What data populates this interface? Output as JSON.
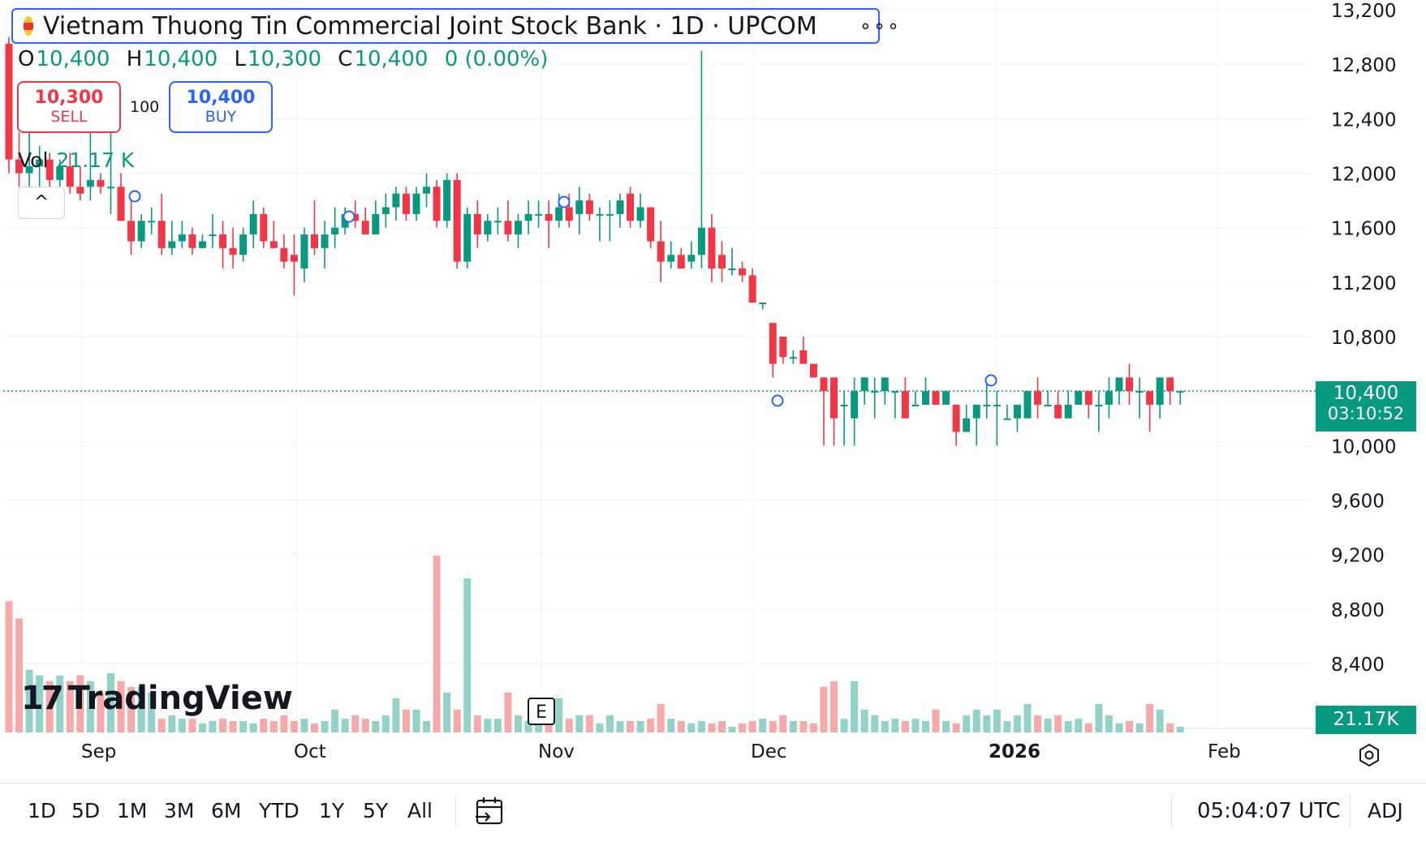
{
  "header": {
    "title": "Vietnam Thuong Tin Commercial Joint Stock Bank · 1D · UPCOM",
    "more_label": "∘∘∘"
  },
  "ohlc": {
    "o_key": "O",
    "o": "10,400",
    "h_key": "H",
    "h": "10,400",
    "l_key": "L",
    "l": "10,300",
    "c_key": "C",
    "c": "10,400",
    "change": "0 (0.00%)"
  },
  "trade": {
    "sell_price": "10,300",
    "sell_label": "SELL",
    "quantity": "100",
    "buy_price": "10,400",
    "buy_label": "BUY"
  },
  "volume_pane": {
    "label": "Vol",
    "value": "21.17 K"
  },
  "collapse_label": "^",
  "watermark": "TradingView",
  "event_marker": "E",
  "price_axis": {
    "ticks": [
      "13,200",
      "12,800",
      "12,400",
      "12,000",
      "11,600",
      "11,200",
      "10,800",
      "10,400",
      "10,000",
      "9,600",
      "9,200",
      "8,800",
      "8,400"
    ],
    "current_price": "10,400",
    "countdown": "03:10:52",
    "volume_tag": "21.17K"
  },
  "time_axis": {
    "labels": [
      "Sep",
      "Oct",
      "Nov",
      "Dec",
      "2026",
      "Feb"
    ]
  },
  "ranges": [
    "1D",
    "5D",
    "1M",
    "3M",
    "6M",
    "YTD",
    "1Y",
    "5Y",
    "All"
  ],
  "clock": "05:04:07 UTC",
  "adj_label": "ADJ",
  "colors": {
    "up": "#089981",
    "down": "#f23645",
    "up_vol": "#92d2c8",
    "down_vol": "#f7a9a7",
    "accent": "#2962ff"
  },
  "chart_data": {
    "type": "candlestick",
    "ylim": [
      8200,
      13300
    ],
    "current_price": 10400,
    "candles": [
      {
        "o": 12950,
        "h": 13000,
        "l": 12000,
        "c": 12100,
        "v": 115
      },
      {
        "o": 12100,
        "h": 12300,
        "l": 11900,
        "c": 12000,
        "v": 100
      },
      {
        "o": 12000,
        "h": 12400,
        "l": 11800,
        "c": 12050,
        "v": 55
      },
      {
        "o": 12050,
        "h": 12200,
        "l": 11900,
        "c": 12100,
        "v": 50
      },
      {
        "o": 12100,
        "h": 12150,
        "l": 11850,
        "c": 11950,
        "v": 45
      },
      {
        "o": 11950,
        "h": 12100,
        "l": 11900,
        "c": 12050,
        "v": 50
      },
      {
        "o": 12050,
        "h": 12150,
        "l": 11850,
        "c": 11900,
        "v": 45
      },
      {
        "o": 11900,
        "h": 12050,
        "l": 11800,
        "c": 11850,
        "v": 50
      },
      {
        "o": 11900,
        "h": 12300,
        "l": 11800,
        "c": 11950,
        "v": 45
      },
      {
        "o": 11950,
        "h": 12000,
        "l": 11850,
        "c": 11900,
        "v": 35
      },
      {
        "o": 11900,
        "h": 12400,
        "l": 11700,
        "c": 11900,
        "v": 52
      },
      {
        "o": 11900,
        "h": 12000,
        "l": 11650,
        "c": 11650,
        "v": 45
      },
      {
        "o": 11650,
        "h": 11800,
        "l": 11400,
        "c": 11500,
        "v": 40
      },
      {
        "o": 11500,
        "h": 11700,
        "l": 11450,
        "c": 11650,
        "v": 40
      },
      {
        "o": 11650,
        "h": 11750,
        "l": 11550,
        "c": 11650,
        "v": 35
      },
      {
        "o": 11650,
        "h": 11850,
        "l": 11400,
        "c": 11450,
        "v": 12
      },
      {
        "o": 11450,
        "h": 11650,
        "l": 11400,
        "c": 11500,
        "v": 15
      },
      {
        "o": 11500,
        "h": 11650,
        "l": 11450,
        "c": 11550,
        "v": 12
      },
      {
        "o": 11550,
        "h": 11600,
        "l": 11400,
        "c": 11450,
        "v": 12
      },
      {
        "o": 11450,
        "h": 11550,
        "l": 11450,
        "c": 11500,
        "v": 8
      },
      {
        "o": 11550,
        "h": 11700,
        "l": 11450,
        "c": 11550,
        "v": 10
      },
      {
        "o": 11550,
        "h": 11650,
        "l": 11300,
        "c": 11450,
        "v": 12
      },
      {
        "o": 11450,
        "h": 11600,
        "l": 11300,
        "c": 11400,
        "v": 10
      },
      {
        "o": 11400,
        "h": 11600,
        "l": 11350,
        "c": 11550,
        "v": 10
      },
      {
        "o": 11550,
        "h": 11800,
        "l": 11450,
        "c": 11700,
        "v": 8
      },
      {
        "o": 11700,
        "h": 11750,
        "l": 11450,
        "c": 11500,
        "v": 12
      },
      {
        "o": 11500,
        "h": 11650,
        "l": 11450,
        "c": 11450,
        "v": 10
      },
      {
        "o": 11450,
        "h": 11550,
        "l": 11300,
        "c": 11350,
        "v": 15
      },
      {
        "o": 11400,
        "h": 11550,
        "l": 11100,
        "c": 11350,
        "v": 10
      },
      {
        "o": 11300,
        "h": 11600,
        "l": 11200,
        "c": 11550,
        "v": 12
      },
      {
        "o": 11550,
        "h": 11800,
        "l": 11400,
        "c": 11450,
        "v": 8
      },
      {
        "o": 11450,
        "h": 11650,
        "l": 11300,
        "c": 11550,
        "v": 10
      },
      {
        "o": 11550,
        "h": 11750,
        "l": 11450,
        "c": 11600,
        "v": 20
      },
      {
        "o": 11600,
        "h": 11750,
        "l": 11550,
        "c": 11700,
        "v": 12
      },
      {
        "o": 11700,
        "h": 11800,
        "l": 11600,
        "c": 11650,
        "v": 15
      },
      {
        "o": 11650,
        "h": 11750,
        "l": 11550,
        "c": 11550,
        "v": 12
      },
      {
        "o": 11550,
        "h": 11800,
        "l": 11550,
        "c": 11700,
        "v": 10
      },
      {
        "o": 11700,
        "h": 11850,
        "l": 11600,
        "c": 11750,
        "v": 15
      },
      {
        "o": 11750,
        "h": 11900,
        "l": 11650,
        "c": 11850,
        "v": 30
      },
      {
        "o": 11850,
        "h": 11900,
        "l": 11650,
        "c": 11700,
        "v": 20
      },
      {
        "o": 11700,
        "h": 11900,
        "l": 11650,
        "c": 11850,
        "v": 20
      },
      {
        "o": 11850,
        "h": 12000,
        "l": 11750,
        "c": 11900,
        "v": 10
      },
      {
        "o": 11900,
        "h": 11950,
        "l": 11600,
        "c": 11650,
        "v": 155
      },
      {
        "o": 11650,
        "h": 12000,
        "l": 11600,
        "c": 11950,
        "v": 35
      },
      {
        "o": 11950,
        "h": 12000,
        "l": 11300,
        "c": 11350,
        "v": 20
      },
      {
        "o": 11350,
        "h": 11750,
        "l": 11300,
        "c": 11700,
        "v": 135
      },
      {
        "o": 11700,
        "h": 11800,
        "l": 11450,
        "c": 11550,
        "v": 15
      },
      {
        "o": 11550,
        "h": 11700,
        "l": 11500,
        "c": 11650,
        "v": 12
      },
      {
        "o": 11650,
        "h": 11750,
        "l": 11550,
        "c": 11650,
        "v": 12
      },
      {
        "o": 11650,
        "h": 11800,
        "l": 11500,
        "c": 11550,
        "v": 35
      },
      {
        "o": 11550,
        "h": 11700,
        "l": 11450,
        "c": 11650,
        "v": 15
      },
      {
        "o": 11650,
        "h": 11800,
        "l": 11550,
        "c": 11700,
        "v": 10
      },
      {
        "o": 11700,
        "h": 11800,
        "l": 11600,
        "c": 11700,
        "v": 12
      },
      {
        "o": 11700,
        "h": 11800,
        "l": 11450,
        "c": 11650,
        "v": 15
      },
      {
        "o": 11650,
        "h": 11850,
        "l": 11600,
        "c": 11750,
        "v": 30
      },
      {
        "o": 11750,
        "h": 11850,
        "l": 11600,
        "c": 11650,
        "v": 12
      },
      {
        "o": 11700,
        "h": 11900,
        "l": 11550,
        "c": 11800,
        "v": 15
      },
      {
        "o": 11800,
        "h": 11850,
        "l": 11650,
        "c": 11700,
        "v": 15
      },
      {
        "o": 11700,
        "h": 11750,
        "l": 11500,
        "c": 11700,
        "v": 8
      },
      {
        "o": 11700,
        "h": 11800,
        "l": 11500,
        "c": 11700,
        "v": 15
      },
      {
        "o": 11700,
        "h": 11850,
        "l": 11600,
        "c": 11800,
        "v": 10
      },
      {
        "o": 11850,
        "h": 11900,
        "l": 11600,
        "c": 11650,
        "v": 10
      },
      {
        "o": 11650,
        "h": 11850,
        "l": 11600,
        "c": 11750,
        "v": 10
      },
      {
        "o": 11750,
        "h": 11750,
        "l": 11450,
        "c": 11500,
        "v": 12
      },
      {
        "o": 11500,
        "h": 11650,
        "l": 11200,
        "c": 11350,
        "v": 25
      },
      {
        "o": 11350,
        "h": 11500,
        "l": 11300,
        "c": 11400,
        "v": 12
      },
      {
        "o": 11400,
        "h": 11450,
        "l": 11300,
        "c": 11300,
        "v": 10
      },
      {
        "o": 11350,
        "h": 11500,
        "l": 11300,
        "c": 11400,
        "v": 8
      },
      {
        "o": 11400,
        "h": 12900,
        "l": 11300,
        "c": 11600,
        "v": 10
      },
      {
        "o": 11600,
        "h": 11700,
        "l": 11200,
        "c": 11300,
        "v": 8
      },
      {
        "o": 11400,
        "h": 11500,
        "l": 11200,
        "c": 11300,
        "v": 10
      },
      {
        "o": 11300,
        "h": 11450,
        "l": 11250,
        "c": 11300,
        "v": 5
      },
      {
        "o": 11300,
        "h": 11350,
        "l": 11200,
        "c": 11250,
        "v": 8
      },
      {
        "o": 11250,
        "h": 11300,
        "l": 11050,
        "c": 11050,
        "v": 10
      },
      {
        "o": 11050,
        "h": 11050,
        "l": 11000,
        "c": 11050,
        "v": 12
      },
      {
        "o": 10900,
        "h": 10900,
        "l": 10500,
        "c": 10600,
        "v": 10
      },
      {
        "o": 10800,
        "h": 10800,
        "l": 10600,
        "c": 10650,
        "v": 15
      },
      {
        "o": 10650,
        "h": 10700,
        "l": 10600,
        "c": 10650,
        "v": 10
      },
      {
        "o": 10700,
        "h": 10800,
        "l": 10600,
        "c": 10600,
        "v": 10
      },
      {
        "o": 10600,
        "h": 10600,
        "l": 10500,
        "c": 10500,
        "v": 8
      },
      {
        "o": 10500,
        "h": 10500,
        "l": 10000,
        "c": 10400,
        "v": 40
      },
      {
        "o": 10500,
        "h": 10500,
        "l": 10000,
        "c": 10200,
        "v": 45
      },
      {
        "o": 10300,
        "h": 10400,
        "l": 10000,
        "c": 10300,
        "v": 12
      },
      {
        "o": 10200,
        "h": 10500,
        "l": 10000,
        "c": 10400,
        "v": 45
      },
      {
        "o": 10400,
        "h": 10500,
        "l": 10300,
        "c": 10500,
        "v": 20
      },
      {
        "o": 10400,
        "h": 10500,
        "l": 10200,
        "c": 10400,
        "v": 15
      },
      {
        "o": 10400,
        "h": 10500,
        "l": 10300,
        "c": 10500,
        "v": 10
      },
      {
        "o": 10400,
        "h": 10400,
        "l": 10200,
        "c": 10400,
        "v": 12
      },
      {
        "o": 10400,
        "h": 10500,
        "l": 10200,
        "c": 10200,
        "v": 10
      },
      {
        "o": 10300,
        "h": 10400,
        "l": 10300,
        "c": 10300,
        "v": 12
      },
      {
        "o": 10300,
        "h": 10500,
        "l": 10300,
        "c": 10400,
        "v": 10
      },
      {
        "o": 10400,
        "h": 10400,
        "l": 10300,
        "c": 10300,
        "v": 20
      },
      {
        "o": 10300,
        "h": 10400,
        "l": 10300,
        "c": 10400,
        "v": 10
      },
      {
        "o": 10300,
        "h": 10300,
        "l": 10000,
        "c": 10100,
        "v": 8
      },
      {
        "o": 10100,
        "h": 10300,
        "l": 10100,
        "c": 10200,
        "v": 15
      },
      {
        "o": 10200,
        "h": 10300,
        "l": 10000,
        "c": 10300,
        "v": 20
      },
      {
        "o": 10300,
        "h": 10500,
        "l": 10200,
        "c": 10300,
        "v": 15
      },
      {
        "o": 10300,
        "h": 10400,
        "l": 10000,
        "c": 10300,
        "v": 20
      },
      {
        "o": 10200,
        "h": 10300,
        "l": 10200,
        "c": 10200,
        "v": 10
      },
      {
        "o": 10200,
        "h": 10300,
        "l": 10100,
        "c": 10300,
        "v": 15
      },
      {
        "o": 10200,
        "h": 10400,
        "l": 10200,
        "c": 10400,
        "v": 25
      },
      {
        "o": 10400,
        "h": 10500,
        "l": 10200,
        "c": 10300,
        "v": 15
      },
      {
        "o": 10300,
        "h": 10400,
        "l": 10300,
        "c": 10300,
        "v": 12
      },
      {
        "o": 10300,
        "h": 10400,
        "l": 10200,
        "c": 10200,
        "v": 15
      },
      {
        "o": 10200,
        "h": 10400,
        "l": 10200,
        "c": 10300,
        "v": 10
      },
      {
        "o": 10300,
        "h": 10400,
        "l": 10300,
        "c": 10400,
        "v": 12
      },
      {
        "o": 10400,
        "h": 10400,
        "l": 10200,
        "c": 10300,
        "v": 8
      },
      {
        "o": 10300,
        "h": 10400,
        "l": 10100,
        "c": 10300,
        "v": 25
      },
      {
        "o": 10300,
        "h": 10500,
        "l": 10200,
        "c": 10400,
        "v": 15
      },
      {
        "o": 10400,
        "h": 10500,
        "l": 10300,
        "c": 10500,
        "v": 8
      },
      {
        "o": 10500,
        "h": 10600,
        "l": 10300,
        "c": 10400,
        "v": 10
      },
      {
        "o": 10400,
        "h": 10500,
        "l": 10200,
        "c": 10400,
        "v": 8
      },
      {
        "o": 10400,
        "h": 10400,
        "l": 10100,
        "c": 10300,
        "v": 25
      },
      {
        "o": 10300,
        "h": 10500,
        "l": 10200,
        "c": 10500,
        "v": 20
      },
      {
        "o": 10500,
        "h": 10500,
        "l": 10300,
        "c": 10400,
        "v": 8
      },
      {
        "o": 10400,
        "h": 10400,
        "l": 10300,
        "c": 10400,
        "v": 5
      }
    ]
  }
}
